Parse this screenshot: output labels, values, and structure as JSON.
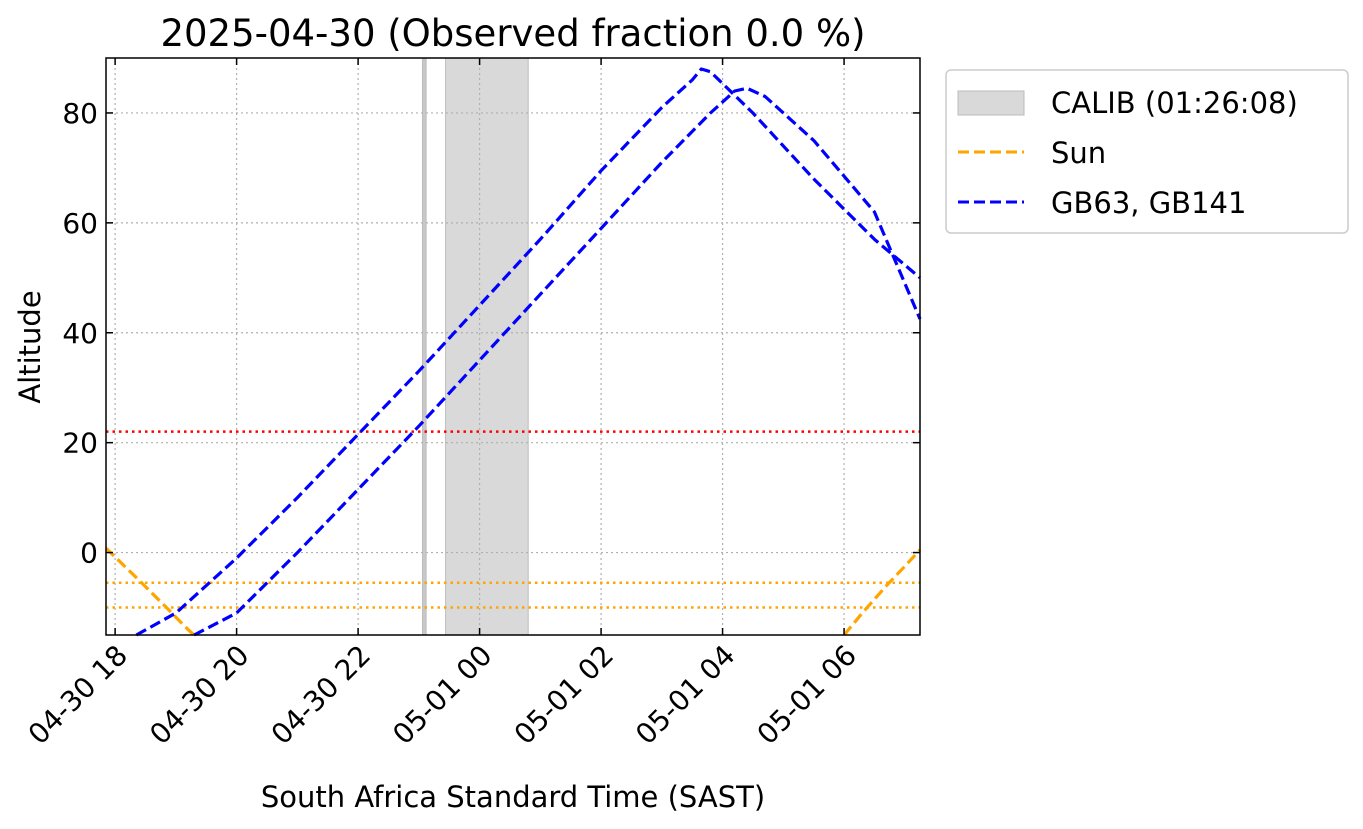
{
  "chart_data": {
    "type": "line",
    "title": "2025-04-30 (Observed fraction 0.0 %)",
    "xlabel": "South Africa Standard Time (SAST)",
    "ylabel": "Altitude",
    "x_unit": "hours since 2025-04-30 18:00 SAST",
    "xlim": [
      -0.15,
      13.25
    ],
    "ylim": [
      -15,
      90
    ],
    "grid": true,
    "legend": {
      "placement": "outside-upper-right"
    },
    "x_ticks": [
      {
        "value": 0,
        "label": "04-30 18"
      },
      {
        "value": 2,
        "label": "04-30 20"
      },
      {
        "value": 4,
        "label": "04-30 22"
      },
      {
        "value": 6,
        "label": "05-01 00"
      },
      {
        "value": 8,
        "label": "05-01 02"
      },
      {
        "value": 10,
        "label": "05-01 04"
      },
      {
        "value": 12,
        "label": "05-01 06"
      }
    ],
    "y_ticks": [
      0,
      20,
      40,
      60,
      80
    ],
    "vspans": [
      {
        "x0": 5.06,
        "x1": 5.12,
        "color": "#c8c8c8"
      },
      {
        "x0": 5.44,
        "x1": 6.8,
        "color": "#d9d9d9",
        "legend": "CALIB (01:26:08)"
      }
    ],
    "hlines": [
      {
        "y": 22,
        "color": "#ff0000",
        "style": "dotted"
      },
      {
        "y": -5.5,
        "color": "#ffa500",
        "style": "dotted"
      },
      {
        "y": -10,
        "color": "#ffa500",
        "style": "dotted"
      }
    ],
    "series": [
      {
        "name": "Sun",
        "color": "#ffa500",
        "style": "dashed",
        "segments": [
          [
            [
              -0.15,
              0.8
            ],
            [
              0.3,
              -4
            ],
            [
              0.8,
              -9.5
            ],
            [
              1.2,
              -14
            ],
            [
              1.3,
              -15
            ]
          ],
          [
            [
              12.0,
              -15
            ],
            [
              12.3,
              -11
            ],
            [
              12.7,
              -6
            ],
            [
              13.0,
              -2.5
            ],
            [
              13.25,
              0.5
            ]
          ]
        ]
      },
      {
        "name": "GB63",
        "color": "#0000ff",
        "style": "dashed",
        "points": [
          [
            0.35,
            -15
          ],
          [
            1.0,
            -11
          ],
          [
            2.0,
            -1
          ],
          [
            3.0,
            10
          ],
          [
            4.0,
            21.5
          ],
          [
            5.0,
            33
          ],
          [
            6.0,
            45
          ],
          [
            7.0,
            57
          ],
          [
            8.0,
            69.5
          ],
          [
            9.0,
            81
          ],
          [
            9.5,
            86
          ],
          [
            9.65,
            88
          ],
          [
            9.8,
            87.5
          ],
          [
            10.5,
            80
          ],
          [
            11.5,
            68
          ],
          [
            12.5,
            57
          ],
          [
            13.25,
            50
          ]
        ]
      },
      {
        "name": "GB141",
        "color": "#0000ff",
        "style": "dashed",
        "points": [
          [
            1.3,
            -15
          ],
          [
            2.0,
            -11
          ],
          [
            3.0,
            0
          ],
          [
            4.0,
            11.5
          ],
          [
            5.0,
            23
          ],
          [
            6.0,
            35
          ],
          [
            7.0,
            47
          ],
          [
            8.0,
            59
          ],
          [
            9.0,
            71
          ],
          [
            9.8,
            80
          ],
          [
            10.2,
            84
          ],
          [
            10.4,
            84.5
          ],
          [
            10.7,
            83
          ],
          [
            11.5,
            75
          ],
          [
            12.5,
            62
          ],
          [
            13.25,
            42.5
          ]
        ]
      }
    ],
    "legend_entries": [
      {
        "label": "CALIB (01:26:08)",
        "kind": "patch",
        "color": "#d9d9d9"
      },
      {
        "label": "Sun",
        "kind": "line",
        "color": "#ffa500"
      },
      {
        "label": "GB63, GB141",
        "kind": "line",
        "color": "#0000ff"
      }
    ]
  }
}
